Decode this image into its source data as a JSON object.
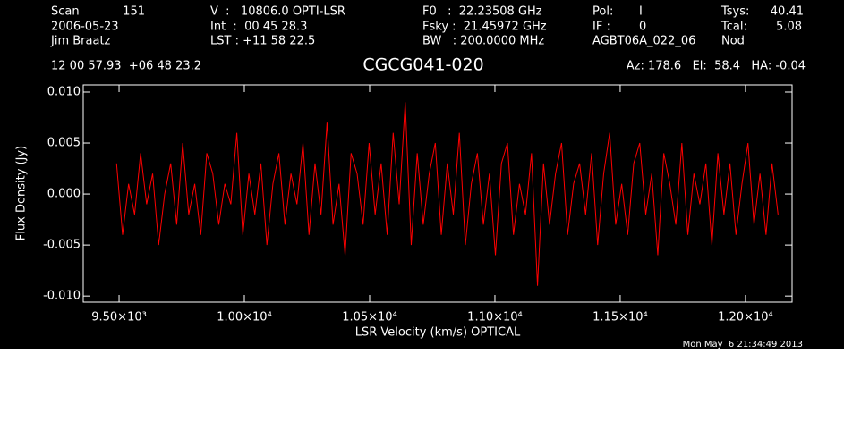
{
  "header": {
    "scan_label": "Scan",
    "scan": "151",
    "date": "2006-05-23",
    "observer": "Jim Braatz",
    "velocity": "V  :   10806.0 OPTI-LSR",
    "int": "Int  :  00 45 28.3",
    "lst": "LST : +11 58 22.5",
    "f0": "F0   :  22.23508 GHz",
    "fsky": "Fsky :  21.45972 GHz",
    "bw": "BW   : 200.0000 MHz",
    "pol_label": "Pol:",
    "pol": "I",
    "if_label": "IF :",
    "if": "0",
    "project": "AGBT06A_022_06",
    "tsys_label": "Tsys:",
    "tsys": "40.41",
    "tcal_label": "Tcal:",
    "tcal": "5.08",
    "proc": "Nod",
    "coords": "12 00 57.93  +06 48 23.2",
    "azel": "Az: 178.6   El:  58.4   HA: -0.04",
    "timestamp": "Mon May  6 21:34:49 2013"
  },
  "chart_data": {
    "type": "line",
    "title": "CGCG041-020",
    "x_label": "LSR Velocity (km/s) OPTICAL",
    "y_label": "Flux Density (Jy)",
    "xlim": [
      9357,
      12186
    ],
    "ylim": [
      -0.0106,
      0.0107
    ],
    "xticks": [
      {
        "value": 9500,
        "label": "9.50×10³"
      },
      {
        "value": 10000,
        "label": "1.00×10⁴"
      },
      {
        "value": 10500,
        "label": "1.05×10⁴"
      },
      {
        "value": 11000,
        "label": "1.10×10⁴"
      },
      {
        "value": 11500,
        "label": "1.15×10⁴"
      },
      {
        "value": 12000,
        "label": "1.20×10⁴"
      }
    ],
    "yticks": [
      {
        "value": -0.01,
        "label": "-0.010"
      },
      {
        "value": -0.005,
        "label": "-0.005"
      },
      {
        "value": 0,
        "label": "0.000"
      },
      {
        "value": 0.005,
        "label": "0.005"
      },
      {
        "value": 0.01,
        "label": "0.010"
      }
    ],
    "x": [
      9490,
      9514,
      9538,
      9562,
      9586,
      9610,
      9634,
      9658,
      9682,
      9706,
      9730,
      9754,
      9778,
      9802,
      9826,
      9850,
      9874,
      9898,
      9922,
      9946,
      9970,
      9994,
      10018,
      10042,
      10066,
      10090,
      10114,
      10138,
      10162,
      10186,
      10210,
      10234,
      10258,
      10282,
      10306,
      10330,
      10354,
      10378,
      10402,
      10426,
      10450,
      10474,
      10498,
      10522,
      10546,
      10570,
      10594,
      10618,
      10642,
      10666,
      10690,
      10714,
      10738,
      10762,
      10786,
      10810,
      10834,
      10858,
      10882,
      10906,
      10930,
      10954,
      10978,
      11002,
      11026,
      11050,
      11074,
      11098,
      11122,
      11146,
      11170,
      11194,
      11218,
      11242,
      11266,
      11290,
      11314,
      11338,
      11362,
      11386,
      11410,
      11434,
      11458,
      11482,
      11506,
      11530,
      11554,
      11578,
      11602,
      11626,
      11650,
      11674,
      11698,
      11722,
      11746,
      11770,
      11794,
      11818,
      11842,
      11866,
      11890,
      11914,
      11938,
      11962,
      11986,
      12010,
      12034,
      12058,
      12082,
      12106,
      12130
    ],
    "series": [
      {
        "color": "#ff0000",
        "values": [
          0.003,
          -0.004,
          0.001,
          -0.002,
          0.004,
          -0.001,
          0.002,
          -0.005,
          0.0,
          0.003,
          -0.003,
          0.005,
          -0.002,
          0.001,
          -0.004,
          0.004,
          0.002,
          -0.003,
          0.001,
          -0.001,
          0.006,
          -0.004,
          0.002,
          -0.002,
          0.003,
          -0.005,
          0.001,
          0.004,
          -0.003,
          0.002,
          -0.001,
          0.005,
          -0.004,
          0.003,
          -0.002,
          0.007,
          -0.003,
          0.001,
          -0.006,
          0.004,
          0.002,
          -0.003,
          0.005,
          -0.002,
          0.003,
          -0.004,
          0.006,
          -0.001,
          0.009,
          -0.005,
          0.004,
          -0.003,
          0.002,
          0.005,
          -0.004,
          0.003,
          -0.002,
          0.006,
          -0.005,
          0.001,
          0.004,
          -0.003,
          0.002,
          -0.006,
          0.003,
          0.005,
          -0.004,
          0.001,
          -0.002,
          0.004,
          -0.009,
          0.003,
          -0.003,
          0.002,
          0.005,
          -0.004,
          0.001,
          0.003,
          -0.002,
          0.004,
          -0.005,
          0.002,
          0.006,
          -0.003,
          0.001,
          -0.004,
          0.003,
          0.005,
          -0.002,
          0.002,
          -0.006,
          0.004,
          0.001,
          -0.003,
          0.005,
          -0.004,
          0.002,
          -0.001,
          0.003,
          -0.005,
          0.004,
          -0.002,
          0.003,
          -0.004,
          0.001,
          0.005,
          -0.003,
          0.002,
          -0.004,
          0.003,
          -0.002
        ]
      }
    ]
  }
}
